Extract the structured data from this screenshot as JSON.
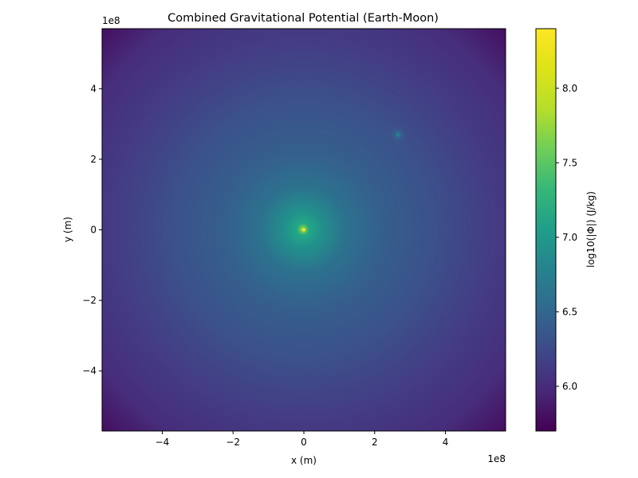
{
  "chart_data": {
    "type": "heatmap",
    "title": "Combined Gravitational Potential (Earth-Moon)",
    "xlabel": "x (m)",
    "ylabel": "y (m)",
    "x_multiplier": "1e8",
    "y_multiplier": "1e8",
    "xlim": [
      -5.7,
      5.7
    ],
    "ylim": [
      -5.7,
      5.7
    ],
    "x_ticks": [
      -4,
      -2,
      0,
      2,
      4
    ],
    "x_tick_labels": [
      "−4",
      "−2",
      "0",
      "2",
      "4"
    ],
    "y_ticks": [
      -4,
      -2,
      0,
      2,
      4
    ],
    "y_tick_labels": [
      "−4",
      "−2",
      "0",
      "2",
      "4"
    ],
    "grid": false,
    "colormap": "viridis",
    "colorbar": {
      "label": "log10(|Φ|) (J/kg)",
      "range": [
        5.7,
        8.4
      ],
      "ticks": [
        6.0,
        6.5,
        7.0,
        7.5,
        8.0
      ],
      "tick_labels": [
        "6.0",
        "6.5",
        "7.0",
        "7.5",
        "8.0"
      ]
    },
    "bodies": [
      {
        "x": 0,
        "y": 0,
        "peak_log10": 8.4
      },
      {
        "x": 2.7,
        "y": 2.7,
        "peak_log10": 6.5
      }
    ]
  }
}
